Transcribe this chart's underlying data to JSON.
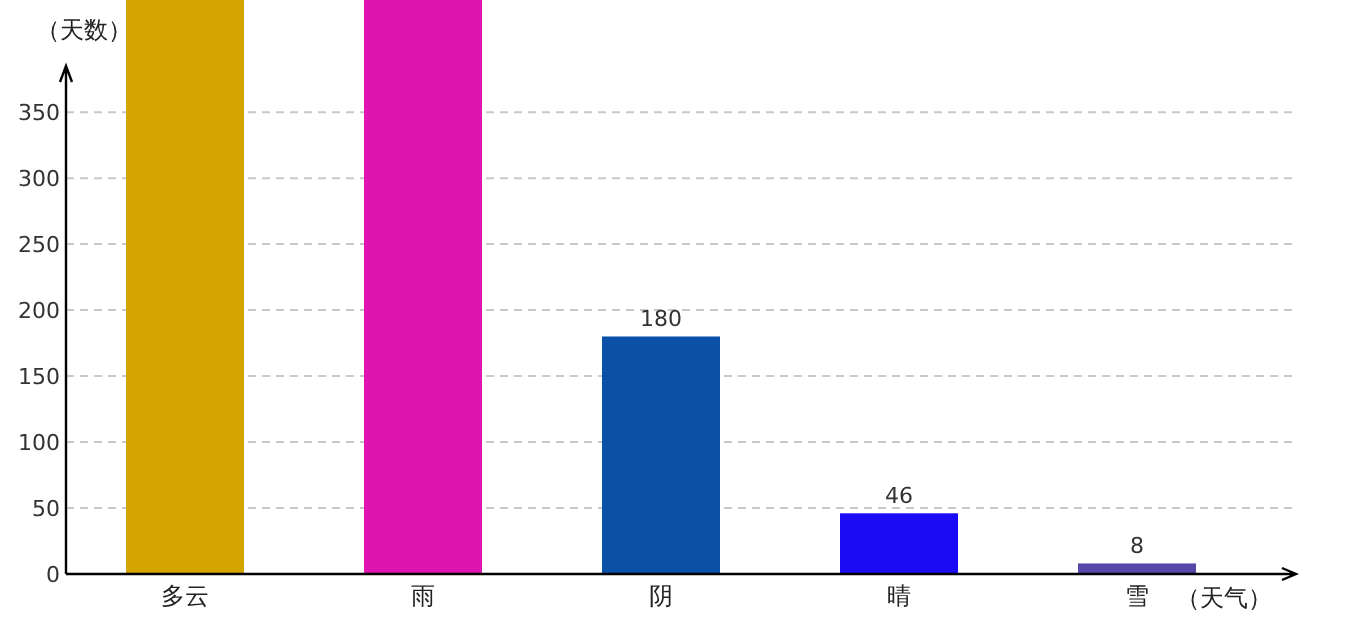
{
  "chart_data": {
    "type": "bar",
    "xlabel": "（天气）",
    "ylabel": "（天数）",
    "categories": [
      "多云",
      "雨",
      "阴",
      "晴",
      "雪"
    ],
    "values": [
      435,
      435,
      180,
      46,
      8
    ],
    "colors": [
      "#d4a500",
      "#e014b0",
      "#0a50a6",
      "#1a0af5",
      "#5846a8"
    ],
    "value_labels": [
      null,
      null,
      "180",
      "46",
      "8"
    ],
    "ylim": [
      0,
      435
    ],
    "yticks": [
      0,
      50,
      100,
      150,
      200,
      250,
      300,
      350
    ],
    "grid": "y"
  }
}
